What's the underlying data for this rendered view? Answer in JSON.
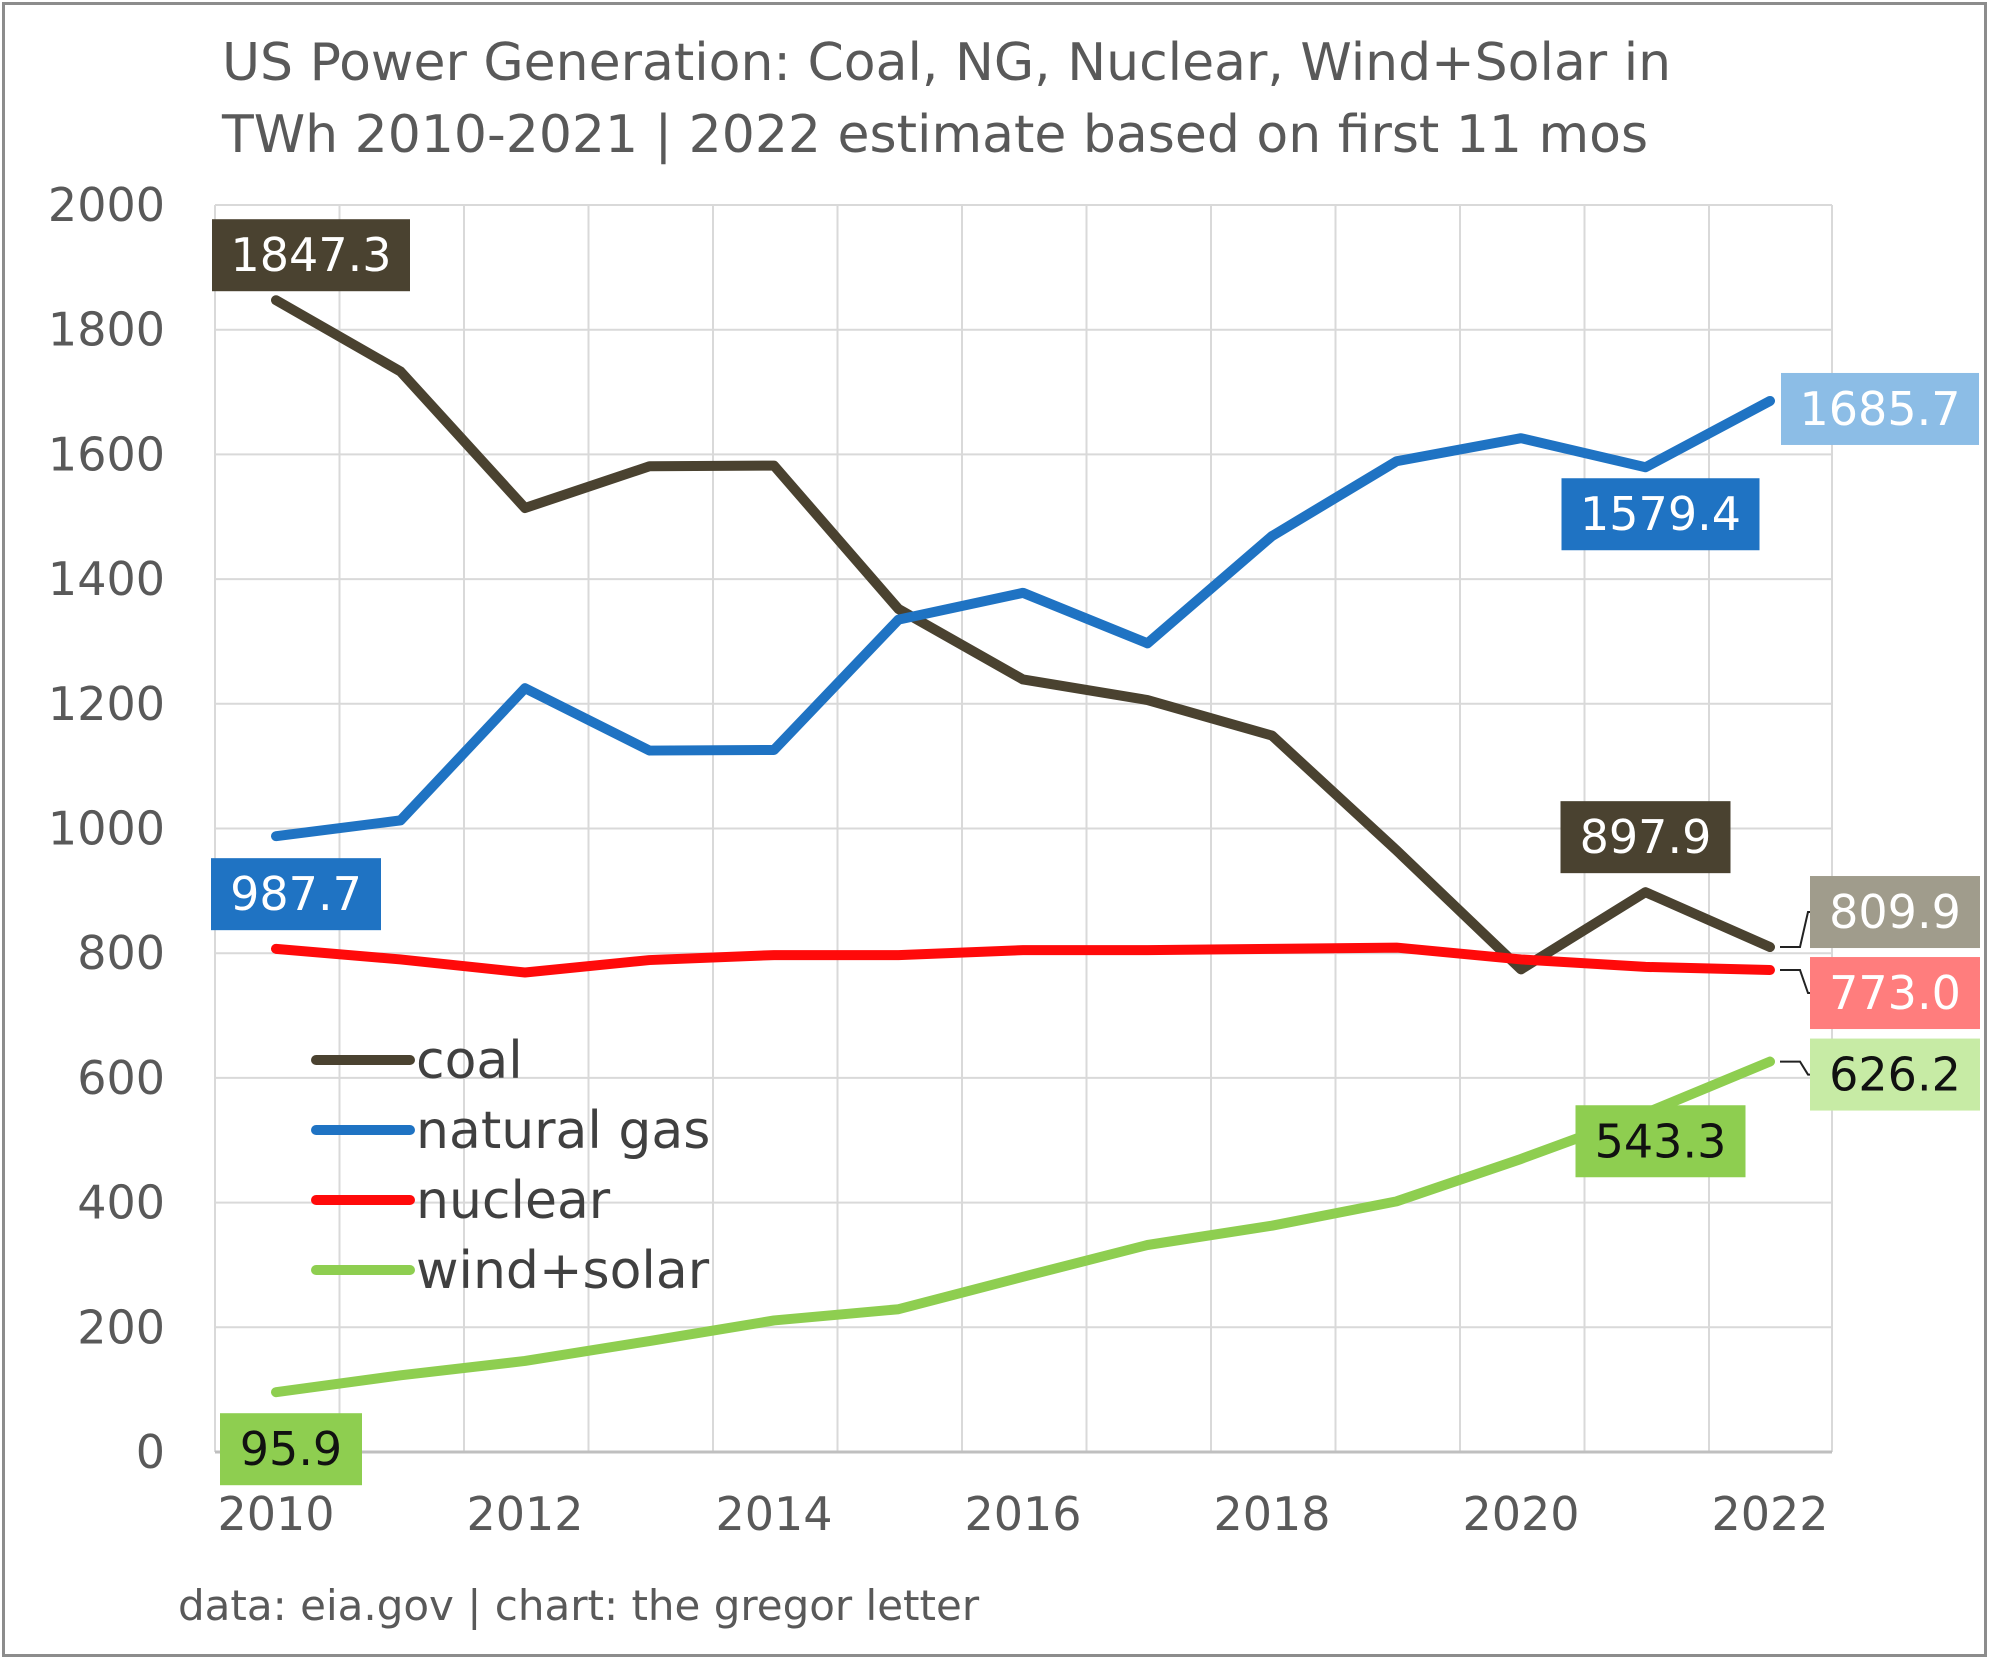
{
  "chart_data": {
    "type": "line",
    "title_lines": [
      "US Power Generation: Coal, NG, Nuclear, Wind+Solar in",
      "TWh 2010-2021 | 2022 estimate based on first 11 mos"
    ],
    "source": "data: eia.gov | chart: the gregor letter",
    "x": [
      2010,
      2011,
      2012,
      2013,
      2014,
      2015,
      2016,
      2017,
      2018,
      2019,
      2020,
      2021,
      2022
    ],
    "x_ticks": [
      2010,
      2012,
      2014,
      2016,
      2018,
      2020,
      2022
    ],
    "ylim": [
      0,
      2000
    ],
    "y_ticks": [
      0,
      200,
      400,
      600,
      800,
      1000,
      1200,
      1400,
      1600,
      1800,
      2000
    ],
    "grid": true,
    "legend_placement": "lower-left inside plot",
    "series": [
      {
        "name": "coal",
        "color": "#4a4230",
        "values": [
          1847.3,
          1733,
          1514,
          1581,
          1582,
          1352,
          1239,
          1206,
          1149,
          965,
          774,
          897.9,
          809.9
        ],
        "labels": [
          {
            "index": 0,
            "text": "1847.3",
            "bg": "#4a4230",
            "fg": "#ffffff"
          },
          {
            "index": 11,
            "text": "897.9",
            "bg": "#4a4230",
            "fg": "#ffffff"
          },
          {
            "index": 12,
            "text": "809.9",
            "bg": "#a09c8c",
            "fg": "#ffffff"
          }
        ]
      },
      {
        "name": "natural gas",
        "color": "#1f73c3",
        "values": [
          987.7,
          1013,
          1225,
          1125,
          1126,
          1335,
          1378,
          1297,
          1469,
          1589,
          1626,
          1579.4,
          1685.7
        ],
        "labels": [
          {
            "index": 0,
            "text": "987.7",
            "bg": "#1f73c3",
            "fg": "#ffffff"
          },
          {
            "index": 11,
            "text": "1579.4",
            "bg": "#1f73c3",
            "fg": "#ffffff"
          },
          {
            "index": 12,
            "text": "1685.7",
            "bg": "#8cbde6",
            "fg": "#ffffff"
          }
        ]
      },
      {
        "name": "nuclear",
        "color": "#ff0a0a",
        "values": [
          807,
          790,
          769,
          789,
          797,
          797,
          805,
          805,
          807,
          809,
          790,
          778,
          773.0
        ],
        "labels": [
          {
            "index": 12,
            "text": "773.0",
            "bg": "#ff7d7d",
            "fg": "#ffffff"
          }
        ]
      },
      {
        "name": "wind+solar",
        "color": "#8ece50",
        "values": [
          95.9,
          123,
          146,
          178,
          211,
          229,
          281,
          332,
          363,
          402,
          470,
          543.3,
          626.2
        ],
        "labels": [
          {
            "index": 0,
            "text": "95.9",
            "bg": "#8ece50",
            "fg": "#111111"
          },
          {
            "index": 11,
            "text": "543.3",
            "bg": "#8ece50",
            "fg": "#111111"
          },
          {
            "index": 12,
            "text": "626.2",
            "bg": "#c7eba5",
            "fg": "#111111"
          }
        ]
      }
    ]
  }
}
